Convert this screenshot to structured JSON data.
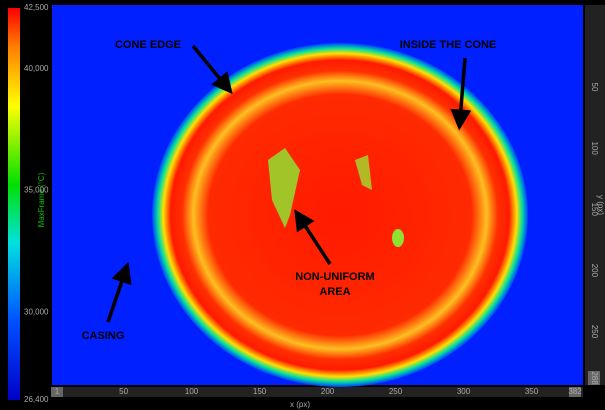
{
  "colorbar": {
    "label": "MaxFrame (°C)",
    "ticks": [
      {
        "value": 42500,
        "label": "42,500"
      },
      {
        "value": 40000,
        "label": "40,000"
      },
      {
        "value": 35000,
        "label": "35,000"
      },
      {
        "value": 30000,
        "label": "30,000"
      },
      {
        "value": 26400,
        "label": "26,400"
      }
    ]
  },
  "x_axis": {
    "label": "x (px)",
    "ticks": [
      1,
      50,
      100,
      150,
      200,
      250,
      300,
      350,
      382
    ]
  },
  "y_axis": {
    "label": "y (px)",
    "ticks": [
      50,
      100,
      150,
      200,
      250,
      288
    ]
  },
  "annotations": [
    "CONE EDGE",
    "INSIDE THE CONE",
    "NON-UNIFORM",
    "AREA",
    "CASING"
  ]
}
